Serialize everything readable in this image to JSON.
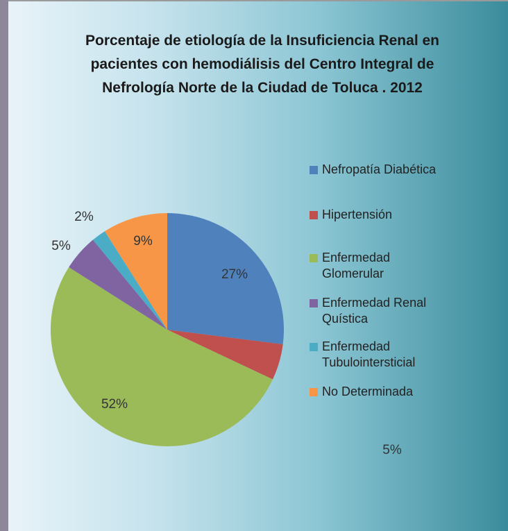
{
  "chart_data": {
    "type": "pie",
    "title": "Porcentaje de etiología de la Insuficiencia Renal en pacientes con hemodiálisis del Centro Integral de Nefrología Norte de la Ciudad de Toluca . 2012",
    "categories": [
      "Nefropatía Diabética",
      "Hipertensión",
      "Enfermedad Glomerular",
      "Enfermedad Renal Quística",
      "Enfermedad Tubulointersticial",
      "No Determinada"
    ],
    "values": [
      27,
      5,
      52,
      5,
      2,
      9
    ],
    "value_labels": [
      "27%",
      "5%",
      "52%",
      "5%",
      "2%",
      "9%"
    ],
    "colors": [
      "#4f81bd",
      "#c0504d",
      "#9bbb59",
      "#8064a2",
      "#4bacc6",
      "#f79646"
    ],
    "legend": "right"
  }
}
